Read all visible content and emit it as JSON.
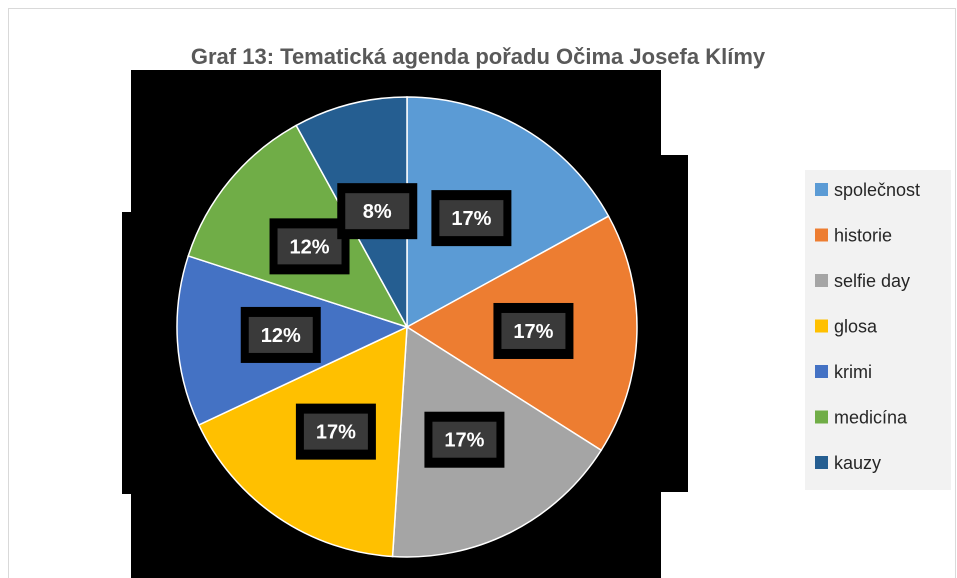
{
  "chart_data": {
    "type": "pie",
    "title": "Graf 13: Tematická agenda pořadu Očima Josefa Klímy",
    "categories": [
      "společnost",
      "historie",
      "selfie day",
      "glosa",
      "krimi",
      "medicína",
      "kauzy"
    ],
    "values": [
      17,
      17,
      17,
      17,
      12,
      12,
      8
    ],
    "labels": [
      "17%",
      "17%",
      "17%",
      "17%",
      "12%",
      "12%",
      "8%"
    ],
    "colors": [
      "#5B9BD5",
      "#ED7D31",
      "#A5A5A5",
      "#FFC000",
      "#4472C4",
      "#70AD47",
      "#255E91"
    ],
    "legend": "right"
  }
}
